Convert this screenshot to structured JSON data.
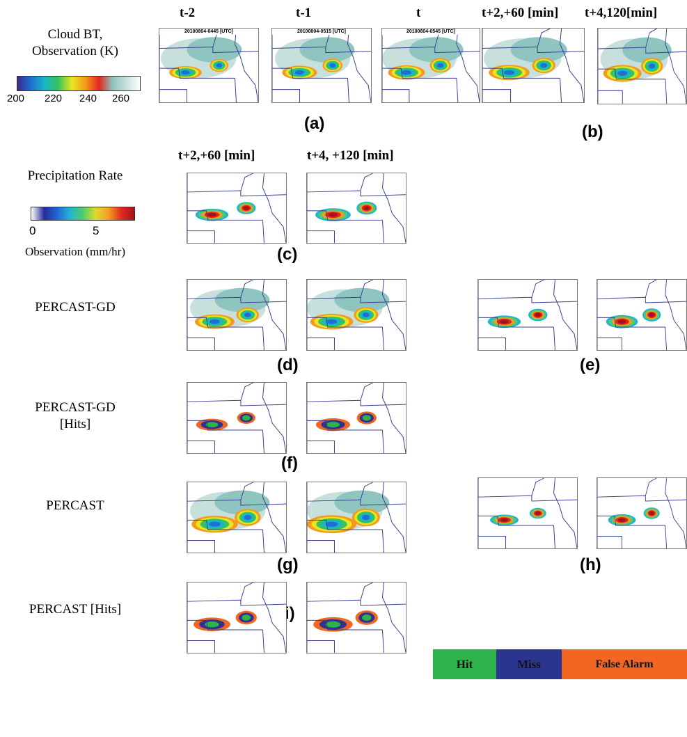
{
  "headers": {
    "row1": [
      "t-2",
      "t-1",
      "t",
      "t+2,+60 [min]",
      "t+4,120[min]"
    ],
    "row2": [
      "t+2,+60 [min]",
      "t+4, +120 [min]"
    ]
  },
  "timestamps": [
    "20100804-0445 [UTC]",
    "20100804-0515 [UTC]",
    "20100804-0545 [UTC]"
  ],
  "cloud_bt": {
    "title_line1": "Cloud BT,",
    "title_line2": "Observation (K)",
    "ticks": [
      "200",
      "220",
      "240",
      "260"
    ]
  },
  "precip": {
    "title": "Precipitation Rate",
    "ticks": [
      "0",
      "5"
    ],
    "subtitle": "Observation (mm/hr)"
  },
  "row_labels": {
    "d": "PERCAST-GD",
    "f_line1": "PERCAST-GD",
    "f_line2": "[Hits]",
    "g": "PERCAST",
    "i": "PERCAST [Hits]"
  },
  "panel_labels": {
    "a": "(a)",
    "b": "(b)",
    "c": "(c)",
    "d": "(d)",
    "e": "(e)",
    "f": "(f)",
    "g": "(g)",
    "h": "(h)",
    "i": "(i)"
  },
  "legend": {
    "hit": "Hit",
    "miss": "Miss",
    "false_alarm": "False Alarm",
    "colors": {
      "hit": "#2db34a",
      "miss": "#2b3590",
      "false_alarm": "#f26522"
    }
  },
  "colors": {
    "boundary": "#3a3f8f",
    "bt_scale": [
      "#3a2a8c",
      "#1e6fd0",
      "#19b6c7",
      "#37c25a",
      "#e7e622",
      "#f59a1e",
      "#e2261f",
      "#8fc5c0",
      "#c7e0dc",
      "#ffffff"
    ],
    "precip_scale": [
      "#ffffff",
      "#2a2a9a",
      "#2166d6",
      "#22b4d2",
      "#4fcc6a",
      "#dcdc2b",
      "#f39b23",
      "#e02a1f",
      "#a3141a"
    ]
  }
}
